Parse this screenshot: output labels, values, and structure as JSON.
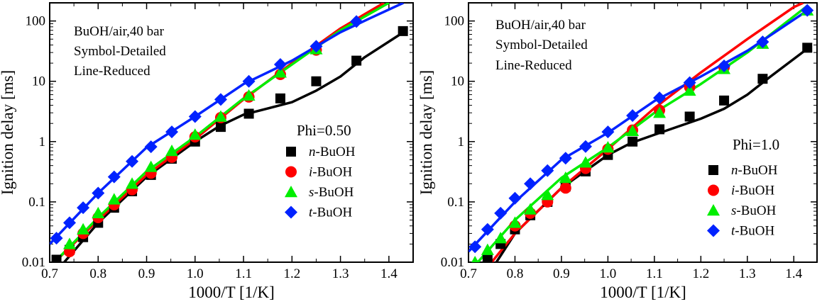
{
  "chart_data": [
    {
      "type": "scatter",
      "panel": "left",
      "xlabel": "1000/T [1/K]",
      "ylabel": "Ignition delay [ms]",
      "xlim": [
        0.7,
        1.45
      ],
      "ylim": [
        0.01,
        200
      ],
      "yscale": "log",
      "x_ticks": [
        "0.7",
        "0.8",
        "0.9",
        "1.0",
        "1.1",
        "1.2",
        "1.3",
        "1.4"
      ],
      "y_ticks": [
        "0.01",
        "0.1",
        "1",
        "10",
        "100"
      ],
      "annotation_lines": [
        "BuOH/air,40 bar",
        "Symbol-Detailed",
        "Line-Reduced"
      ],
      "condition_label": "Phi=0.50",
      "series": [
        {
          "name": "n-BuOH",
          "prefix": "n",
          "suffix": "-BuOH",
          "color": "#000000",
          "marker": "square",
          "points": [
            [
              0.714,
              0.011
            ],
            [
              0.741,
              0.016
            ],
            [
              0.769,
              0.026
            ],
            [
              0.8,
              0.045
            ],
            [
              0.833,
              0.08
            ],
            [
              0.87,
              0.15
            ],
            [
              0.909,
              0.28
            ],
            [
              0.952,
              0.52
            ],
            [
              1.0,
              1.0
            ],
            [
              1.053,
              1.75
            ],
            [
              1.111,
              2.9
            ],
            [
              1.176,
              5.2
            ],
            [
              1.25,
              10
            ],
            [
              1.333,
              22
            ],
            [
              1.429,
              68
            ]
          ],
          "line": [
            [
              0.73,
              0.01
            ],
            [
              0.8,
              0.045
            ],
            [
              0.9,
              0.26
            ],
            [
              1.0,
              1.0
            ],
            [
              1.05,
              1.8
            ],
            [
              1.1,
              2.8
            ],
            [
              1.2,
              4.5
            ],
            [
              1.25,
              7
            ],
            [
              1.3,
              12
            ],
            [
              1.35,
              25
            ],
            [
              1.43,
              65
            ]
          ]
        },
        {
          "name": "i-BuOH",
          "prefix": "i",
          "suffix": "-BuOH",
          "color": "#ff0000",
          "marker": "circle",
          "points": [
            [
              0.741,
              0.015
            ],
            [
              0.769,
              0.03
            ],
            [
              0.8,
              0.055
            ],
            [
              0.833,
              0.09
            ],
            [
              0.87,
              0.16
            ],
            [
              0.909,
              0.3
            ],
            [
              0.952,
              0.55
            ],
            [
              1.0,
              1.2
            ],
            [
              1.053,
              2.5
            ],
            [
              1.111,
              5.5
            ],
            [
              1.176,
              13
            ],
            [
              1.25,
              33
            ]
          ],
          "line": [
            [
              0.71,
              0.01
            ],
            [
              0.8,
              0.05
            ],
            [
              0.9,
              0.28
            ],
            [
              1.0,
              1.1
            ],
            [
              1.1,
              5
            ],
            [
              1.2,
              20
            ],
            [
              1.3,
              75
            ],
            [
              1.39,
              200
            ]
          ]
        },
        {
          "name": "s-BuOH",
          "prefix": "s",
          "suffix": "-BuOH",
          "color": "#00ee00",
          "marker": "triangle",
          "points": [
            [
              0.741,
              0.02
            ],
            [
              0.769,
              0.035
            ],
            [
              0.8,
              0.065
            ],
            [
              0.833,
              0.11
            ],
            [
              0.87,
              0.2
            ],
            [
              0.909,
              0.38
            ],
            [
              0.952,
              0.7
            ],
            [
              1.0,
              1.3
            ],
            [
              1.053,
              2.6
            ],
            [
              1.111,
              5.8
            ],
            [
              1.176,
              14
            ],
            [
              1.25,
              34
            ]
          ],
          "line": [
            [
              0.71,
              0.01
            ],
            [
              0.8,
              0.055
            ],
            [
              0.9,
              0.32
            ],
            [
              1.0,
              1.2
            ],
            [
              1.1,
              5.2
            ],
            [
              1.2,
              19
            ],
            [
              1.3,
              70
            ],
            [
              1.4,
              200
            ]
          ]
        },
        {
          "name": "t-BuOH",
          "prefix": "t",
          "suffix": "-BuOH",
          "color": "#0022ff",
          "marker": "diamond",
          "points": [
            [
              0.714,
              0.025
            ],
            [
              0.741,
              0.045
            ],
            [
              0.769,
              0.08
            ],
            [
              0.8,
              0.14
            ],
            [
              0.833,
              0.26
            ],
            [
              0.87,
              0.47
            ],
            [
              0.909,
              0.82
            ],
            [
              0.952,
              1.45
            ],
            [
              1.0,
              2.6
            ],
            [
              1.053,
              5
            ],
            [
              1.111,
              10
            ],
            [
              1.176,
              19
            ],
            [
              1.25,
              38
            ],
            [
              1.333,
              98
            ]
          ],
          "line": [
            [
              0.7,
              0.02
            ],
            [
              0.8,
              0.14
            ],
            [
              0.9,
              0.8
            ],
            [
              1.0,
              2.6
            ],
            [
              1.1,
              9
            ],
            [
              1.2,
              22
            ],
            [
              1.3,
              65
            ],
            [
              1.36,
              110
            ],
            [
              1.43,
              200
            ]
          ]
        }
      ]
    },
    {
      "type": "scatter",
      "panel": "right",
      "xlabel": "1000/T [1/K]",
      "ylabel": "Ignition delay [ms]",
      "xlim": [
        0.7,
        1.45
      ],
      "ylim": [
        0.01,
        200
      ],
      "yscale": "log",
      "x_ticks": [
        "0.7",
        "0.8",
        "0.9",
        "1.0",
        "1.1",
        "1.2",
        "1.3",
        "1.4"
      ],
      "y_ticks": [
        "0.01",
        "0.1",
        "1",
        "10",
        "100"
      ],
      "annotation_lines": [
        "BuOH/air,40 bar",
        "Symbol-Detailed",
        "Line-Reduced"
      ],
      "condition_label": "Phi=1.0",
      "series": [
        {
          "name": "n-BuOH",
          "prefix": "n",
          "suffix": "-BuOH",
          "color": "#000000",
          "marker": "square",
          "points": [
            [
              0.741,
              0.012
            ],
            [
              0.769,
              0.02
            ],
            [
              0.8,
              0.035
            ],
            [
              0.833,
              0.06
            ],
            [
              0.87,
              0.1
            ],
            [
              0.909,
              0.18
            ],
            [
              0.952,
              0.32
            ],
            [
              1.0,
              0.6
            ],
            [
              1.053,
              1.0
            ],
            [
              1.111,
              1.6
            ],
            [
              1.176,
              2.6
            ],
            [
              1.25,
              4.8
            ],
            [
              1.333,
              11
            ],
            [
              1.429,
              36
            ]
          ],
          "line": [
            [
              0.76,
              0.01
            ],
            [
              0.8,
              0.03
            ],
            [
              0.9,
              0.17
            ],
            [
              1.0,
              0.6
            ],
            [
              1.05,
              0.95
            ],
            [
              1.1,
              1.3
            ],
            [
              1.2,
              2.4
            ],
            [
              1.25,
              3.5
            ],
            [
              1.3,
              6
            ],
            [
              1.35,
              12
            ],
            [
              1.43,
              35
            ]
          ]
        },
        {
          "name": "i-BuOH",
          "prefix": "i",
          "suffix": "-BuOH",
          "color": "#ff0000",
          "marker": "circle",
          "points": [
            [
              0.8,
              0.04
            ],
            [
              0.833,
              0.065
            ],
            [
              0.87,
              0.1
            ],
            [
              0.909,
              0.17
            ],
            [
              0.952,
              0.36
            ],
            [
              1.0,
              0.75
            ],
            [
              1.053,
              1.55
            ],
            [
              1.111,
              3.3
            ],
            [
              1.176,
              8
            ],
            [
              1.25,
              17
            ]
          ],
          "line": [
            [
              0.75,
              0.01
            ],
            [
              0.8,
              0.03
            ],
            [
              0.9,
              0.17
            ],
            [
              1.0,
              0.75
            ],
            [
              1.1,
              3.6
            ],
            [
              1.2,
              14
            ],
            [
              1.3,
              50
            ],
            [
              1.4,
              170
            ],
            [
              1.42,
              200
            ]
          ]
        },
        {
          "name": "s-BuOH",
          "prefix": "s",
          "suffix": "-BuOH",
          "color": "#00ee00",
          "marker": "triangle",
          "points": [
            [
              0.714,
              0.01
            ],
            [
              0.741,
              0.016
            ],
            [
              0.769,
              0.025
            ],
            [
              0.8,
              0.045
            ],
            [
              0.833,
              0.075
            ],
            [
              0.87,
              0.13
            ],
            [
              0.909,
              0.25
            ],
            [
              0.952,
              0.45
            ],
            [
              1.0,
              0.8
            ],
            [
              1.053,
              1.5
            ],
            [
              1.111,
              3
            ],
            [
              1.176,
              7
            ],
            [
              1.25,
              16
            ],
            [
              1.333,
              42
            ],
            [
              1.429,
              150
            ]
          ],
          "line": [
            [
              0.72,
              0.01
            ],
            [
              0.8,
              0.05
            ],
            [
              0.9,
              0.25
            ],
            [
              1.0,
              0.8
            ],
            [
              1.1,
              3
            ],
            [
              1.2,
              9
            ],
            [
              1.3,
              30
            ],
            [
              1.43,
              180
            ]
          ]
        },
        {
          "name": "t-BuOH",
          "prefix": "t",
          "suffix": "-BuOH",
          "color": "#0022ff",
          "marker": "diamond",
          "points": [
            [
              0.714,
              0.018
            ],
            [
              0.741,
              0.035
            ],
            [
              0.769,
              0.065
            ],
            [
              0.8,
              0.115
            ],
            [
              0.833,
              0.2
            ],
            [
              0.87,
              0.33
            ],
            [
              0.909,
              0.53
            ],
            [
              0.952,
              0.83
            ],
            [
              1.0,
              1.45
            ],
            [
              1.053,
              2.7
            ],
            [
              1.111,
              5.3
            ],
            [
              1.176,
              9.5
            ],
            [
              1.25,
              18
            ],
            [
              1.333,
              45
            ],
            [
              1.429,
              150
            ]
          ],
          "line": [
            [
              0.7,
              0.015
            ],
            [
              0.8,
              0.1
            ],
            [
              0.9,
              0.5
            ],
            [
              1.0,
              1.4
            ],
            [
              1.1,
              4.7
            ],
            [
              1.2,
              12
            ],
            [
              1.3,
              32
            ],
            [
              1.43,
              150
            ]
          ]
        }
      ]
    }
  ]
}
